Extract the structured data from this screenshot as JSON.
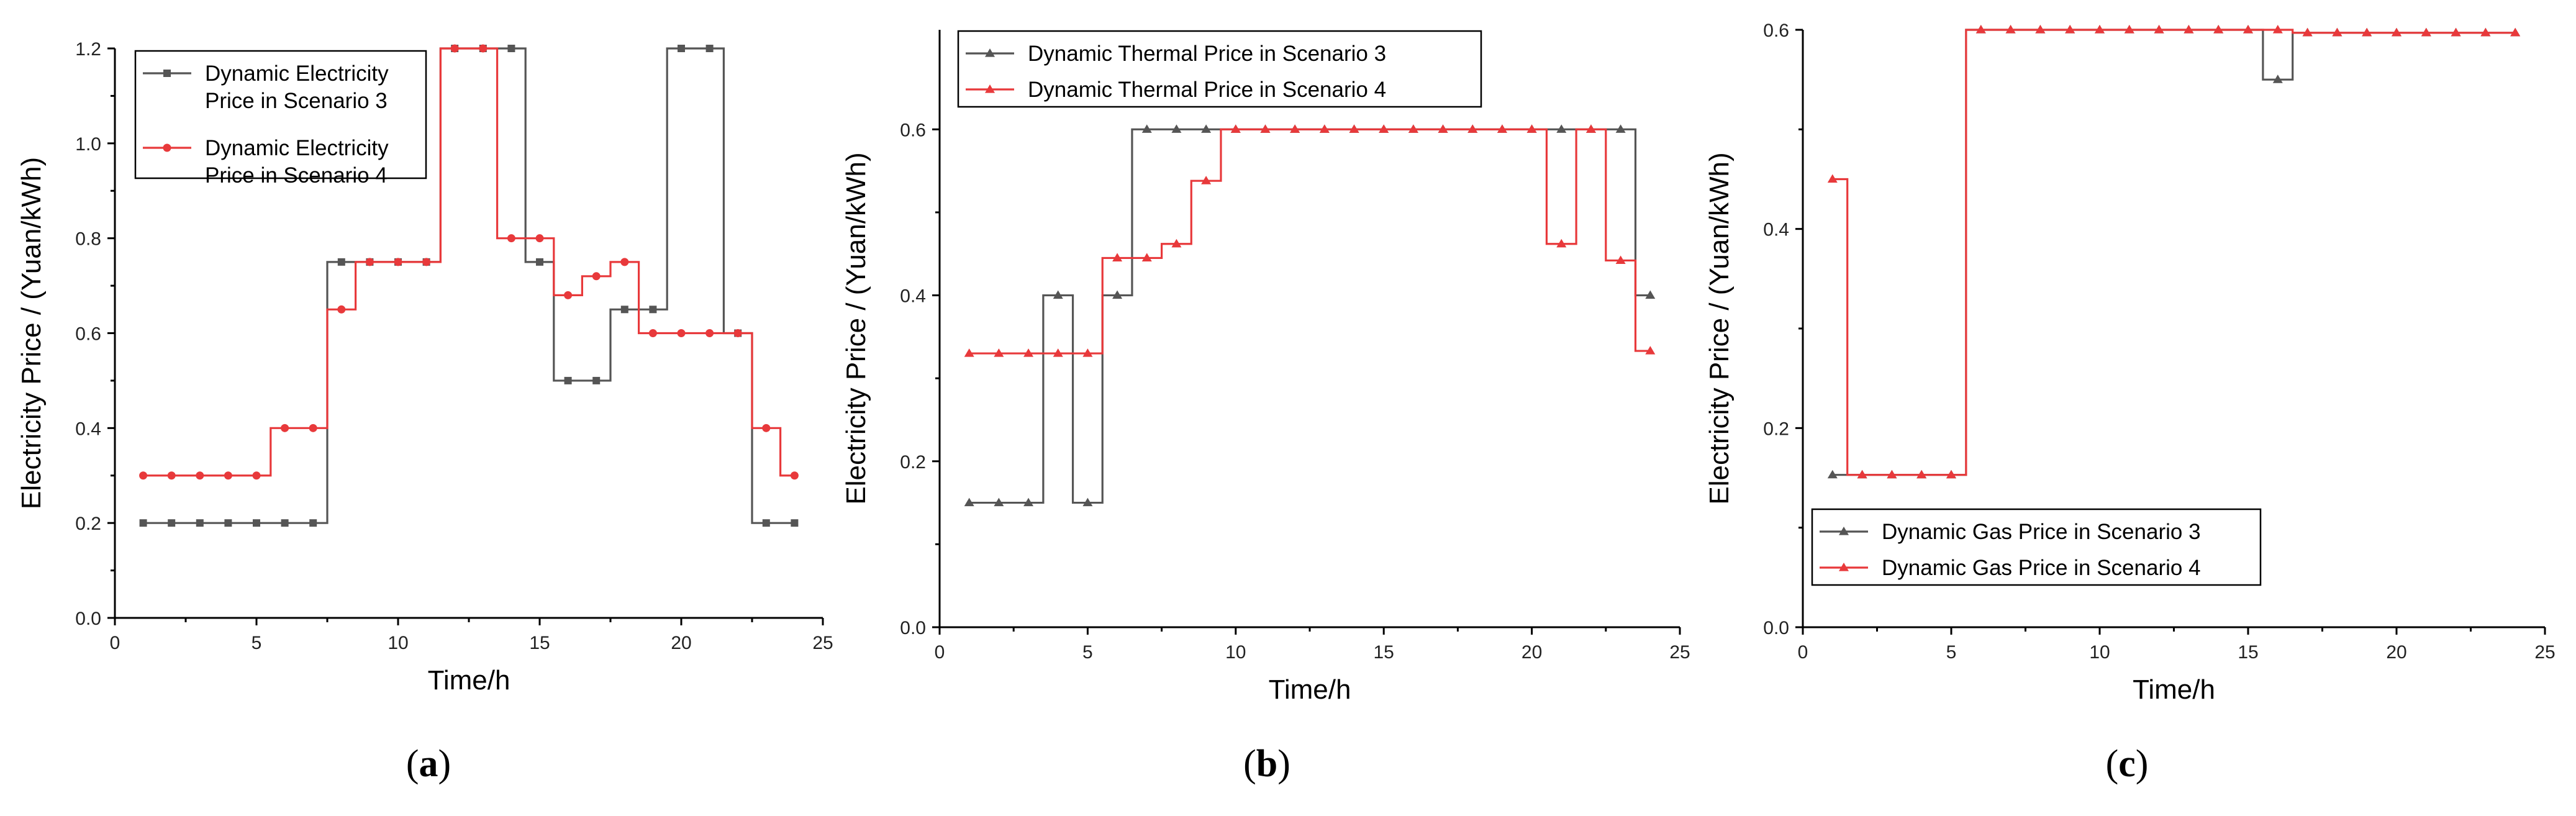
{
  "chart_data": [
    {
      "type": "line",
      "step": true,
      "panel_label": "a",
      "xlabel": "Time/h",
      "ylabel": "Electricity Price / (Yuan/kWh)",
      "xlim": [
        0,
        25
      ],
      "ylim": [
        0,
        1.2
      ],
      "xticks": [
        0,
        5,
        10,
        15,
        20,
        25
      ],
      "yticks": [
        0.0,
        0.2,
        0.4,
        0.6,
        0.8,
        1.0,
        1.2
      ],
      "ytick_labels": [
        "0.0",
        "0.2",
        "0.4",
        "0.6",
        "0.8",
        "1.0",
        "1.2"
      ],
      "legend_position": "top-left",
      "x": [
        1,
        2,
        3,
        4,
        5,
        6,
        7,
        8,
        9,
        10,
        11,
        12,
        13,
        14,
        15,
        16,
        17,
        18,
        19,
        20,
        21,
        22,
        23,
        24
      ],
      "series": [
        {
          "name": "Dynamic Electricity Price in Scenario 3",
          "legend_lines": [
            "Dynamic Electricity",
            "Price in Scenario 3"
          ],
          "marker": "square",
          "color": "#555555",
          "values": [
            0.2,
            0.2,
            0.2,
            0.2,
            0.2,
            0.2,
            0.2,
            0.75,
            0.75,
            0.75,
            0.75,
            1.2,
            1.2,
            1.2,
            0.75,
            0.5,
            0.5,
            0.65,
            0.65,
            1.2,
            1.2,
            0.6,
            0.2,
            0.2
          ]
        },
        {
          "name": "Dynamic Electricity Price in Scenario 4",
          "legend_lines": [
            "Dynamic Electricity",
            "Price in Scenario 4"
          ],
          "marker": "circle",
          "color": "#e8393b",
          "values": [
            0.3,
            0.3,
            0.3,
            0.3,
            0.3,
            0.4,
            0.4,
            0.65,
            0.75,
            0.75,
            0.75,
            1.2,
            1.2,
            0.8,
            0.8,
            0.68,
            0.72,
            0.75,
            0.6,
            0.6,
            0.6,
            0.6,
            0.4,
            0.3
          ]
        }
      ]
    },
    {
      "type": "line",
      "step": true,
      "panel_label": "b",
      "xlabel": "Time/h",
      "ylabel": "Electricity Price / (Yuan/kWh)",
      "xlim": [
        0,
        25
      ],
      "ylim": [
        0,
        0.72
      ],
      "xticks": [
        0,
        5,
        10,
        15,
        20,
        25
      ],
      "yticks": [
        0.0,
        0.2,
        0.4,
        0.6
      ],
      "ytick_labels": [
        "0.0",
        "0.2",
        "0.4",
        "0.6"
      ],
      "legend_position": "top-left",
      "x": [
        1,
        2,
        3,
        4,
        5,
        6,
        7,
        8,
        9,
        10,
        11,
        12,
        13,
        14,
        15,
        16,
        17,
        18,
        19,
        20,
        21,
        22,
        23,
        24
      ],
      "series": [
        {
          "name": "Dynamic Thermal Price in Scenario 3",
          "legend_lines": [
            "Dynamic Thermal Price in Scenario 3"
          ],
          "marker": "triangle",
          "color": "#555555",
          "values": [
            0.15,
            0.15,
            0.15,
            0.4,
            0.15,
            0.4,
            0.6,
            0.6,
            0.6,
            0.6,
            0.6,
            0.6,
            0.6,
            0.6,
            0.6,
            0.6,
            0.6,
            0.6,
            0.6,
            0.6,
            0.6,
            0.6,
            0.6,
            0.4
          ]
        },
        {
          "name": "Dynamic Thermal Price in Scenario 4",
          "legend_lines": [
            "Dynamic Thermal Price in Scenario 4"
          ],
          "marker": "triangle",
          "color": "#e8393b",
          "values": [
            0.33,
            0.33,
            0.33,
            0.33,
            0.33,
            0.445,
            0.445,
            0.462,
            0.538,
            0.6,
            0.6,
            0.6,
            0.6,
            0.6,
            0.6,
            0.6,
            0.6,
            0.6,
            0.6,
            0.6,
            0.462,
            0.6,
            0.442,
            0.333
          ]
        }
      ]
    },
    {
      "type": "line",
      "step": true,
      "panel_label": "c",
      "xlabel": "Time/h",
      "ylabel": "Electricity Price / (Yuan/kWh)",
      "xlim": [
        0,
        25
      ],
      "ylim": [
        0,
        0.6
      ],
      "xticks": [
        0,
        5,
        10,
        15,
        20,
        25
      ],
      "yticks": [
        0.0,
        0.2,
        0.4,
        0.6
      ],
      "ytick_labels": [
        "0.0",
        "0.2",
        "0.4",
        "0.6"
      ],
      "legend_position": "bottom-left",
      "x": [
        1,
        2,
        3,
        4,
        5,
        6,
        7,
        8,
        9,
        10,
        11,
        12,
        13,
        14,
        15,
        16,
        17,
        18,
        19,
        20,
        21,
        22,
        23,
        24
      ],
      "series": [
        {
          "name": "Dynamic Gas Price in Scenario 3",
          "legend_lines": [
            "Dynamic Gas Price in Scenario 3"
          ],
          "marker": "triangle",
          "color": "#555555",
          "values": [
            0.153,
            0.153,
            0.153,
            0.153,
            0.153,
            0.6,
            0.6,
            0.6,
            0.6,
            0.6,
            0.6,
            0.6,
            0.6,
            0.6,
            0.6,
            0.55,
            0.597,
            0.597,
            0.597,
            0.597,
            0.597,
            0.597,
            0.597,
            0.597
          ]
        },
        {
          "name": "Dynamic Gas Price in Scenario 4",
          "legend_lines": [
            "Dynamic Gas Price in Scenario 4"
          ],
          "marker": "triangle",
          "color": "#e8393b",
          "values": [
            0.45,
            0.153,
            0.153,
            0.153,
            0.153,
            0.6,
            0.6,
            0.6,
            0.6,
            0.6,
            0.6,
            0.6,
            0.6,
            0.6,
            0.6,
            0.6,
            0.597,
            0.597,
            0.597,
            0.597,
            0.597,
            0.597,
            0.597,
            0.597
          ]
        }
      ]
    }
  ]
}
